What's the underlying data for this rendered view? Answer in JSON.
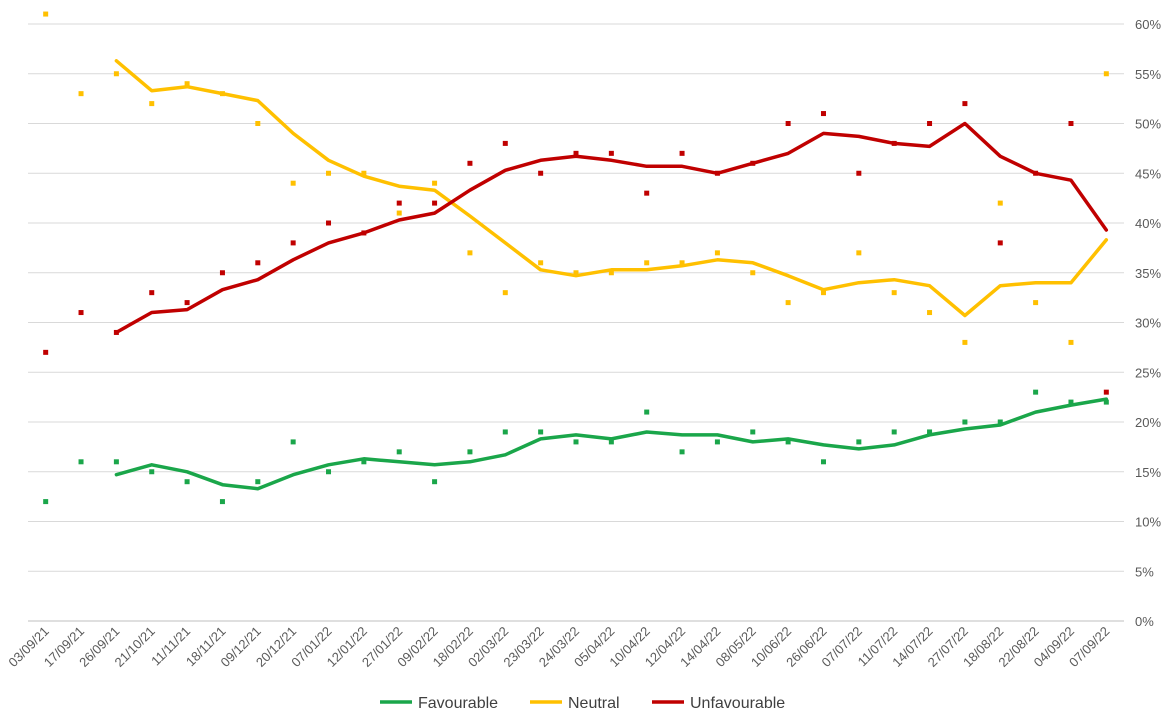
{
  "chart_data": {
    "type": "line",
    "title": "",
    "xlabel": "",
    "ylabel": "",
    "ylim": [
      0,
      60
    ],
    "y_ticks": [
      "0%",
      "5%",
      "10%",
      "15%",
      "20%",
      "25%",
      "30%",
      "35%",
      "40%",
      "45%",
      "50%",
      "55%",
      "60%"
    ],
    "y_axis_position": "right",
    "grid": true,
    "legend_position": "bottom",
    "categories": [
      "03/09/21",
      "17/09/21",
      "26/09/21",
      "21/10/21",
      "11/11/21",
      "18/11/21",
      "09/12/21",
      "20/12/21",
      "07/01/22",
      "12/01/22",
      "27/01/22",
      "09/02/22",
      "18/02/22",
      "02/03/22",
      "23/03/22",
      "24/03/22",
      "05/04/22",
      "10/04/22",
      "12/04/22",
      "14/04/22",
      "08/05/22",
      "10/06/22",
      "26/06/22",
      "07/07/22",
      "11/07/22",
      "14/07/22",
      "27/07/22",
      "18/08/22",
      "22/08/22",
      "04/09/22",
      "07/09/22"
    ],
    "series": [
      {
        "name": "Favourable",
        "color": "#1aa64a",
        "points": [
          12,
          16,
          16,
          15,
          14,
          12,
          14,
          18,
          15,
          16,
          17,
          14,
          17,
          19,
          19,
          18,
          18,
          21,
          17,
          18,
          19,
          18,
          16,
          18,
          19,
          19,
          20,
          20,
          23,
          22,
          22
        ],
        "trend": [
          null,
          null,
          14.7,
          15.7,
          15.0,
          13.7,
          13.3,
          14.7,
          15.7,
          16.3,
          16.0,
          15.7,
          16.0,
          16.7,
          18.3,
          18.7,
          18.3,
          19.0,
          18.7,
          18.7,
          18.0,
          18.3,
          17.7,
          17.3,
          17.7,
          18.7,
          19.3,
          19.7,
          21.0,
          21.7,
          22.3
        ]
      },
      {
        "name": "Neutral",
        "color": "#ffc000",
        "points": [
          61,
          53,
          55,
          52,
          54,
          53,
          50,
          44,
          45,
          45,
          41,
          44,
          37,
          33,
          36,
          35,
          35,
          36,
          36,
          37,
          35,
          32,
          33,
          37,
          33,
          31,
          28,
          42,
          32,
          28,
          55
        ],
        "trend": [
          null,
          null,
          56.3,
          53.3,
          53.7,
          53.0,
          52.3,
          49.0,
          46.3,
          44.7,
          43.7,
          43.3,
          40.7,
          38.0,
          35.3,
          34.7,
          35.3,
          35.3,
          35.7,
          36.3,
          36.0,
          34.7,
          33.3,
          34.0,
          34.3,
          33.7,
          30.7,
          33.7,
          34.0,
          34.0,
          38.3
        ]
      },
      {
        "name": "Unfavourable",
        "color": "#c00000",
        "points": [
          27,
          31,
          29,
          33,
          32,
          35,
          36,
          38,
          40,
          39,
          42,
          42,
          46,
          48,
          45,
          47,
          47,
          43,
          47,
          45,
          46,
          50,
          51,
          45,
          48,
          50,
          52,
          38,
          45,
          50,
          23
        ],
        "trend": [
          null,
          null,
          29.0,
          31.0,
          31.3,
          33.3,
          34.3,
          36.3,
          38.0,
          39.0,
          40.3,
          41.0,
          43.3,
          45.3,
          46.3,
          46.7,
          46.3,
          45.7,
          45.7,
          45.0,
          46.0,
          47.0,
          49.0,
          48.7,
          48.0,
          47.7,
          50.0,
          46.7,
          45.0,
          44.3,
          39.3
        ]
      }
    ]
  }
}
